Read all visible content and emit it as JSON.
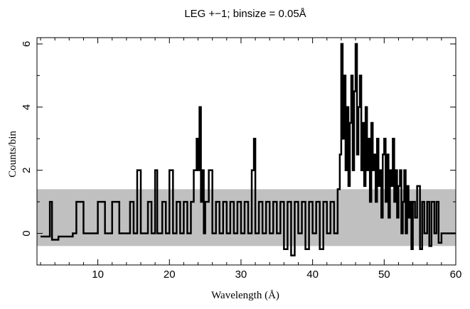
{
  "chart_data": {
    "type": "line",
    "title": "LEG +−1; binsize = 0.05Å",
    "xlabel": "Wavelength (Å)",
    "ylabel": "Counts/bin",
    "xlim": [
      1.5,
      60
    ],
    "ylim": [
      -1,
      6.2
    ],
    "xticks": [
      10,
      20,
      30,
      40,
      50,
      60
    ],
    "yticks": [
      0,
      2,
      4,
      6
    ],
    "error_band": {
      "lower": -0.4,
      "upper": 1.4,
      "x_range": [
        1.5,
        60
      ],
      "color": "#c0c0c0"
    },
    "series": [
      {
        "color": "#000000",
        "x": [
          2.0,
          3.0,
          3.3,
          3.6,
          4.5,
          6.5,
          7.0,
          8.0,
          9.0,
          10.0,
          11.0,
          12.0,
          13.0,
          14.0,
          14.5,
          15.0,
          15.5,
          16.0,
          16.5,
          17.0,
          17.5,
          18.0,
          18.3,
          19.0,
          19.5,
          20.0,
          20.5,
          21.0,
          21.5,
          22.0,
          22.5,
          23.0,
          23.4,
          23.8,
          24.0,
          24.2,
          24.4,
          24.6,
          24.8,
          25.0,
          25.5,
          26.0,
          26.5,
          27.0,
          27.5,
          28.0,
          28.5,
          29.0,
          29.5,
          30.0,
          30.5,
          31.0,
          31.5,
          31.8,
          32.0,
          32.5,
          33.0,
          33.5,
          34.0,
          34.5,
          35.0,
          35.5,
          36.0,
          36.5,
          37.0,
          37.5,
          38.0,
          38.5,
          39.0,
          39.5,
          40.0,
          40.5,
          41.0,
          41.5,
          42.0,
          42.5,
          43.0,
          43.5,
          43.8,
          44.0,
          44.2,
          44.4,
          44.6,
          44.8,
          45.0,
          45.2,
          45.4,
          45.6,
          45.8,
          46.0,
          46.2,
          46.4,
          46.6,
          46.8,
          47.0,
          47.2,
          47.4,
          47.6,
          47.8,
          48.0,
          48.2,
          48.4,
          48.6,
          48.8,
          49.0,
          49.2,
          49.4,
          49.6,
          49.8,
          50.0,
          50.2,
          50.4,
          50.6,
          50.8,
          51.0,
          51.2,
          51.4,
          51.6,
          51.8,
          52.0,
          52.2,
          52.4,
          52.6,
          52.8,
          53.0,
          53.2,
          53.4,
          53.6,
          53.8,
          54.0,
          54.3,
          54.6,
          55.0,
          55.3,
          55.6,
          56.0,
          56.3,
          56.6,
          57.0,
          57.3,
          57.6,
          58.0,
          60.0
        ],
        "y": [
          -0.1,
          -0.1,
          1.0,
          -0.2,
          -0.1,
          0,
          1.0,
          0,
          0,
          1.0,
          0,
          1.0,
          0,
          0,
          1.0,
          0,
          2.0,
          0,
          0,
          1.0,
          0,
          2.0,
          0,
          1.0,
          0,
          2.0,
          0,
          1.0,
          0,
          1.0,
          0,
          1.0,
          2.0,
          3.0,
          2.0,
          4.0,
          1.0,
          2.0,
          0,
          1.0,
          2.0,
          0,
          1.0,
          0,
          1.0,
          0,
          1.0,
          0,
          1.0,
          0,
          1.0,
          0,
          2.0,
          3.0,
          0,
          1.0,
          0,
          1.0,
          0,
          1.0,
          0,
          1.0,
          -0.5,
          1.0,
          -0.7,
          1.0,
          0,
          1.0,
          -0.5,
          1.0,
          0,
          1.0,
          -0.5,
          1.0,
          0,
          1.0,
          0,
          1.4,
          2.5,
          6.0,
          3.0,
          5.0,
          2.0,
          4.0,
          1.5,
          3.5,
          5.0,
          2.0,
          4.5,
          6.0,
          2.5,
          4.0,
          5.0,
          2.0,
          3.5,
          1.5,
          4.0,
          2.0,
          3.0,
          1.0,
          3.5,
          2.0,
          2.5,
          1.0,
          3.0,
          1.5,
          2.0,
          0.5,
          2.5,
          3.0,
          1.0,
          2.5,
          0.5,
          2.0,
          1.5,
          3.0,
          1.0,
          2.0,
          0.5,
          1.5,
          2.0,
          0,
          1.0,
          2.0,
          0,
          1.5,
          0.5,
          1.0,
          -0.5,
          1.0,
          0.5,
          1.5,
          -0.5,
          1.0,
          0,
          1.0,
          -0.4,
          1.0,
          0,
          1.0,
          -0.3,
          0,
          0
        ]
      }
    ],
    "grid": false
  }
}
